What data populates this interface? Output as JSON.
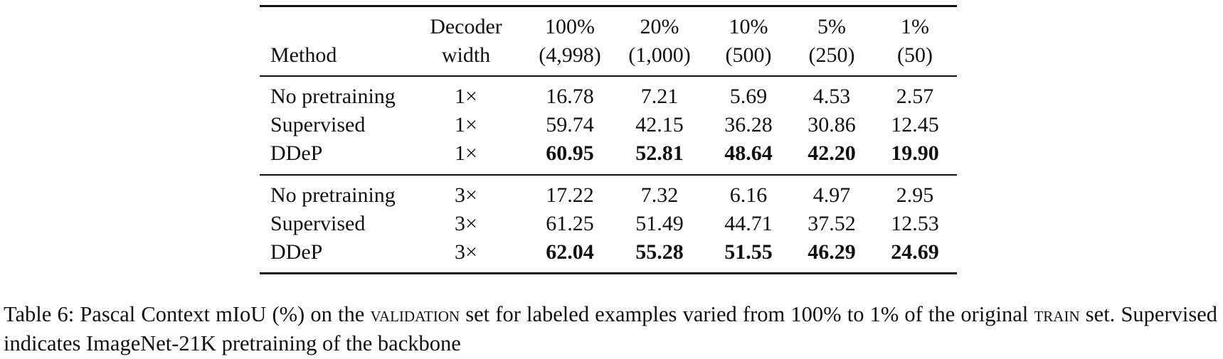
{
  "table": {
    "header": [
      {
        "lines": [
          "Method"
        ]
      },
      {
        "lines": [
          "Decoder",
          "width"
        ]
      },
      {
        "lines": [
          "100%",
          "(4,998)"
        ]
      },
      {
        "lines": [
          "20%",
          "(1,000)"
        ]
      },
      {
        "lines": [
          "10%",
          "(500)"
        ]
      },
      {
        "lines": [
          "5%",
          "(250)"
        ]
      },
      {
        "lines": [
          "1%",
          "(50)"
        ]
      }
    ],
    "groups": [
      [
        {
          "method": "No pretraining",
          "width": "1×",
          "values": [
            "16.78",
            "7.21",
            "5.69",
            "4.53",
            "2.57"
          ],
          "bold": false
        },
        {
          "method": "Supervised",
          "width": "1×",
          "values": [
            "59.74",
            "42.15",
            "36.28",
            "30.86",
            "12.45"
          ],
          "bold": false
        },
        {
          "method": "DDeP",
          "width": "1×",
          "values": [
            "60.95",
            "52.81",
            "48.64",
            "42.20",
            "19.90"
          ],
          "bold": true
        }
      ],
      [
        {
          "method": "No pretraining",
          "width": "3×",
          "values": [
            "17.22",
            "7.32",
            "6.16",
            "4.97",
            "2.95"
          ],
          "bold": false
        },
        {
          "method": "Supervised",
          "width": "3×",
          "values": [
            "61.25",
            "51.49",
            "44.71",
            "37.52",
            "12.53"
          ],
          "bold": false
        },
        {
          "method": "DDeP",
          "width": "3×",
          "values": [
            "62.04",
            "55.28",
            "51.55",
            "46.29",
            "24.69"
          ],
          "bold": true
        }
      ]
    ]
  },
  "caption": {
    "parts": [
      "Table 6: Pascal Context mIoU (%) on the ",
      "validation",
      " set for labeled examples varied from 100% to 1% of the original ",
      "train",
      " set. Supervised indicates ImageNet-21K pretraining of the backbone"
    ]
  }
}
